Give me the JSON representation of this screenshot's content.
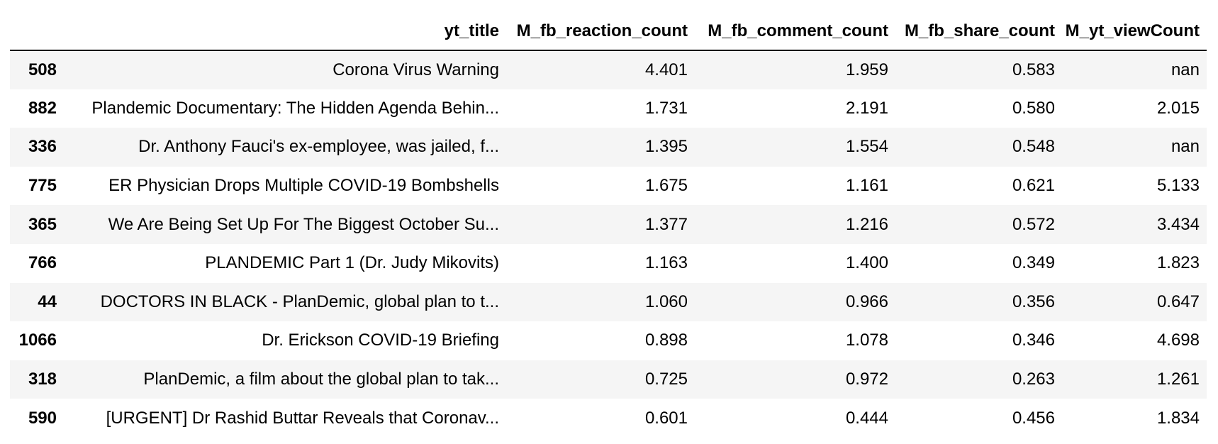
{
  "table": {
    "columns": [
      "",
      "yt_title",
      "M_fb_reaction_count",
      "M_fb_comment_count",
      "M_fb_share_count",
      "M_yt_viewCount"
    ],
    "rows": [
      {
        "index": "508",
        "yt_title": "Corona Virus Warning",
        "M_fb_reaction_count": "4.401",
        "M_fb_comment_count": "1.959",
        "M_fb_share_count": "0.583",
        "M_yt_viewCount": "nan"
      },
      {
        "index": "882",
        "yt_title": "Plandemic Documentary: The Hidden Agenda Behin...",
        "M_fb_reaction_count": "1.731",
        "M_fb_comment_count": "2.191",
        "M_fb_share_count": "0.580",
        "M_yt_viewCount": "2.015"
      },
      {
        "index": "336",
        "yt_title": "Dr. Anthony Fauci's ex-employee, was jailed, f...",
        "M_fb_reaction_count": "1.395",
        "M_fb_comment_count": "1.554",
        "M_fb_share_count": "0.548",
        "M_yt_viewCount": "nan"
      },
      {
        "index": "775",
        "yt_title": "ER Physician Drops Multiple COVID-19 Bombshells",
        "M_fb_reaction_count": "1.675",
        "M_fb_comment_count": "1.161",
        "M_fb_share_count": "0.621",
        "M_yt_viewCount": "5.133"
      },
      {
        "index": "365",
        "yt_title": "We Are Being Set Up For The Biggest October Su...",
        "M_fb_reaction_count": "1.377",
        "M_fb_comment_count": "1.216",
        "M_fb_share_count": "0.572",
        "M_yt_viewCount": "3.434"
      },
      {
        "index": "766",
        "yt_title": "PLANDEMIC Part 1 (Dr. Judy Mikovits)",
        "M_fb_reaction_count": "1.163",
        "M_fb_comment_count": "1.400",
        "M_fb_share_count": "0.349",
        "M_yt_viewCount": "1.823"
      },
      {
        "index": "44",
        "yt_title": "DOCTORS IN BLACK - PlanDemic, global plan to t...",
        "M_fb_reaction_count": "1.060",
        "M_fb_comment_count": "0.966",
        "M_fb_share_count": "0.356",
        "M_yt_viewCount": "0.647"
      },
      {
        "index": "1066",
        "yt_title": "Dr. Erickson COVID-19 Briefing",
        "M_fb_reaction_count": "0.898",
        "M_fb_comment_count": "1.078",
        "M_fb_share_count": "0.346",
        "M_yt_viewCount": "4.698"
      },
      {
        "index": "318",
        "yt_title": "PlanDemic, a film about the global plan to tak...",
        "M_fb_reaction_count": "0.725",
        "M_fb_comment_count": "0.972",
        "M_fb_share_count": "0.263",
        "M_yt_viewCount": "1.261"
      },
      {
        "index": "590",
        "yt_title": "[URGENT] Dr Rashid Buttar Reveals that Coronav...",
        "M_fb_reaction_count": "0.601",
        "M_fb_comment_count": "0.444",
        "M_fb_share_count": "0.456",
        "M_yt_viewCount": "1.834"
      }
    ]
  },
  "colors": {
    "striped_row": "#f5f5f5",
    "plain_row": "#ffffff",
    "header_rule": "#000000",
    "text": "#000000"
  }
}
